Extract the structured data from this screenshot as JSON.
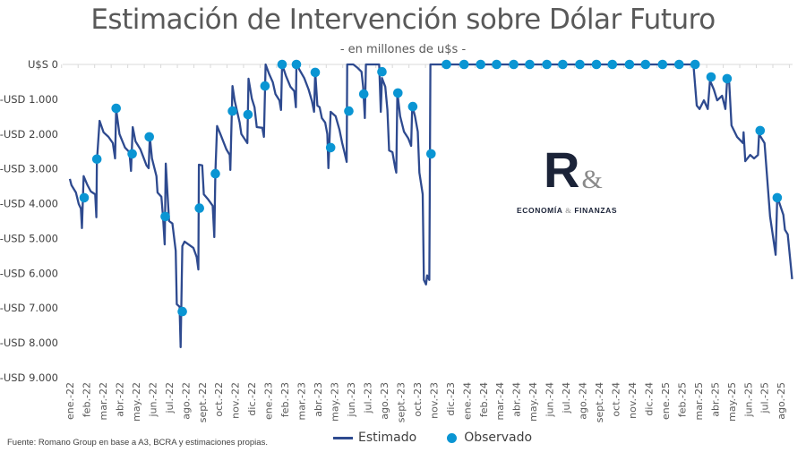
{
  "chart_data": {
    "type": "line",
    "title": "Estimación de Intervención sobre Dólar Futuro",
    "subtitle": "- en millones de u$s -",
    "source": "Fuente: Romano Group en base a A3, BCRA y estimaciones propias.",
    "ylim": [
      -9000,
      0
    ],
    "y_ticks": [
      0,
      -1000,
      -2000,
      -3000,
      -4000,
      -5000,
      -6000,
      -7000,
      -8000,
      -9000
    ],
    "y_tick_labels": [
      "U$S 0",
      "-USD 1.000",
      "-USD 2.000",
      "-USD 3.000",
      "-USD 4.000",
      "-USD 5.000",
      "-USD 6.000",
      "-USD 7.000",
      "-USD 8.000",
      "-USD 9.000"
    ],
    "x_tick_labels": [
      "ene.-22",
      "feb.-22",
      "mar.-22",
      "abr.-22",
      "may.-22",
      "jun.-22",
      "jul.-22",
      "ago.-22",
      "sept.-22",
      "oct.-22",
      "nov.-22",
      "dic.-22",
      "ene.-23",
      "feb.-23",
      "mar.-23",
      "abr.-23",
      "may.-23",
      "jun.-23",
      "jul.-23",
      "ago.-23",
      "sept.-23",
      "oct.-23",
      "nov.-23",
      "dic.-23",
      "ene.-24",
      "feb.-24",
      "mar.-24",
      "abr.-24",
      "may.-24",
      "jun.-24",
      "jul.-24",
      "ago.-24",
      "sept.-24",
      "oct.-24",
      "nov.-24",
      "dic.-24",
      "ene.-25",
      "feb.-25",
      "mar.-25",
      "abr.-25",
      "may.-25",
      "jun.-25",
      "jul.-25",
      "ago.-25"
    ],
    "grid": false,
    "legend_position": "bottom",
    "colors": {
      "estimado": "#2E4A8F",
      "observado": "#0A95D3",
      "text": "#595959"
    },
    "series": [
      {
        "name": "Estimado",
        "style": "line",
        "points": [
          [
            "2022-01-01",
            -3290
          ],
          [
            "2022-01-04",
            -3470
          ],
          [
            "2022-01-12",
            -3680
          ],
          [
            "2022-01-17",
            -4010
          ],
          [
            "2022-01-21",
            -4140
          ],
          [
            "2022-01-23",
            -4700
          ],
          [
            "2022-01-26",
            -3210
          ],
          [
            "2022-02-03",
            -3470
          ],
          [
            "2022-02-09",
            -3650
          ],
          [
            "2022-02-17",
            -3730
          ],
          [
            "2022-02-19",
            -4390
          ],
          [
            "2022-02-20",
            -2780
          ],
          [
            "2022-02-25",
            -1620
          ],
          [
            "2022-03-02",
            -1950
          ],
          [
            "2022-03-11",
            -2080
          ],
          [
            "2022-03-19",
            -2260
          ],
          [
            "2022-03-23",
            -2700
          ],
          [
            "2022-03-25",
            -1290
          ],
          [
            "2022-04-01",
            -2000
          ],
          [
            "2022-04-11",
            -2390
          ],
          [
            "2022-04-19",
            -2520
          ],
          [
            "2022-04-22",
            -3060
          ],
          [
            "2022-04-25",
            -1800
          ],
          [
            "2022-04-30",
            -2210
          ],
          [
            "2022-05-09",
            -2440
          ],
          [
            "2022-05-20",
            -2900
          ],
          [
            "2022-05-24",
            -2980
          ],
          [
            "2022-05-26",
            -2080
          ],
          [
            "2022-05-30",
            -2700
          ],
          [
            "2022-06-08",
            -3210
          ],
          [
            "2022-06-10",
            -3680
          ],
          [
            "2022-06-17",
            -3800
          ],
          [
            "2022-06-20",
            -4370
          ],
          [
            "2022-06-23",
            -5170
          ],
          [
            "2022-06-25",
            -2850
          ],
          [
            "2022-07-01",
            -4500
          ],
          [
            "2022-07-07",
            -4570
          ],
          [
            "2022-07-13",
            -5350
          ],
          [
            "2022-07-15",
            -6890
          ],
          [
            "2022-07-20",
            -6960
          ],
          [
            "2022-07-22",
            -8120
          ],
          [
            "2022-07-25",
            -5220
          ],
          [
            "2022-07-29",
            -5090
          ],
          [
            "2022-08-15",
            -5270
          ],
          [
            "2022-08-21",
            -5530
          ],
          [
            "2022-08-24",
            -5890
          ],
          [
            "2022-08-25",
            -2880
          ],
          [
            "2022-09-01",
            -2900
          ],
          [
            "2022-09-04",
            -3730
          ],
          [
            "2022-09-12",
            -3880
          ],
          [
            "2022-09-20",
            -4060
          ],
          [
            "2022-09-23",
            -4960
          ],
          [
            "2022-09-25",
            -3110
          ],
          [
            "2022-09-28",
            -1770
          ],
          [
            "2022-10-04",
            -2000
          ],
          [
            "2022-10-15",
            -2440
          ],
          [
            "2022-10-21",
            -2600
          ],
          [
            "2022-10-22",
            -3030
          ],
          [
            "2022-10-26",
            -620
          ],
          [
            "2022-10-30",
            -1050
          ],
          [
            "2022-11-09",
            -1670
          ],
          [
            "2022-11-12",
            -2000
          ],
          [
            "2022-11-23",
            -2260
          ],
          [
            "2022-11-25",
            -410
          ],
          [
            "2022-12-01",
            -980
          ],
          [
            "2022-12-06",
            -1230
          ],
          [
            "2022-12-10",
            -1800
          ],
          [
            "2022-12-20",
            -1820
          ],
          [
            "2022-12-23",
            -2080
          ],
          [
            "2022-12-26",
            0
          ],
          [
            "2023-01-02",
            -260
          ],
          [
            "2023-01-09",
            -510
          ],
          [
            "2023-01-14",
            -850
          ],
          [
            "2023-01-21",
            -1030
          ],
          [
            "2023-01-24",
            -1310
          ],
          [
            "2023-01-26",
            0
          ],
          [
            "2023-02-03",
            -330
          ],
          [
            "2023-02-11",
            -640
          ],
          [
            "2023-02-18",
            -770
          ],
          [
            "2023-02-21",
            -1230
          ],
          [
            "2023-02-22",
            0
          ],
          [
            "2023-03-06",
            -390
          ],
          [
            "2023-03-14",
            -720
          ],
          [
            "2023-03-20",
            -1050
          ],
          [
            "2023-03-24",
            -1360
          ],
          [
            "2023-03-26",
            -210
          ],
          [
            "2023-03-30",
            -1180
          ],
          [
            "2023-04-04",
            -1230
          ],
          [
            "2023-04-08",
            -1540
          ],
          [
            "2023-04-14",
            -1670
          ],
          [
            "2023-04-18",
            -2000
          ],
          [
            "2023-04-20",
            -2980
          ],
          [
            "2023-04-24",
            -1360
          ],
          [
            "2023-05-03",
            -1490
          ],
          [
            "2023-05-10",
            -1880
          ],
          [
            "2023-05-15",
            -2260
          ],
          [
            "2023-05-19",
            -2520
          ],
          [
            "2023-05-23",
            -2800
          ],
          [
            "2023-05-24",
            0
          ],
          [
            "2023-06-05",
            0
          ],
          [
            "2023-06-13",
            -100
          ],
          [
            "2023-06-20",
            -210
          ],
          [
            "2023-06-23",
            -640
          ],
          [
            "2023-06-26",
            -1540
          ],
          [
            "2023-06-28",
            0
          ],
          [
            "2023-07-22",
            0
          ],
          [
            "2023-07-25",
            -1360
          ],
          [
            "2023-07-27",
            -390
          ],
          [
            "2023-08-03",
            -640
          ],
          [
            "2023-08-07",
            -1310
          ],
          [
            "2023-08-10",
            -2470
          ],
          [
            "2023-08-16",
            -2520
          ],
          [
            "2023-08-21",
            -2960
          ],
          [
            "2023-08-23",
            -3110
          ],
          [
            "2023-08-25",
            -800
          ],
          [
            "2023-08-30",
            -1490
          ],
          [
            "2023-09-07",
            -1930
          ],
          [
            "2023-09-15",
            -2130
          ],
          [
            "2023-09-20",
            -2340
          ],
          [
            "2023-09-22",
            -1180
          ],
          [
            "2023-09-27",
            -1490
          ],
          [
            "2023-10-02",
            -1930
          ],
          [
            "2023-10-05",
            -3110
          ],
          [
            "2023-10-11",
            -3730
          ],
          [
            "2023-10-13",
            -6190
          ],
          [
            "2023-10-17",
            -6320
          ],
          [
            "2023-10-19",
            -6060
          ],
          [
            "2023-10-23",
            -6190
          ],
          [
            "2023-10-25",
            0
          ],
          [
            "2025-02-22",
            0
          ],
          [
            "2025-02-28",
            -1180
          ],
          [
            "2025-03-03",
            -1280
          ],
          [
            "2025-03-11",
            -1030
          ],
          [
            "2025-03-18",
            -1280
          ],
          [
            "2025-03-22",
            -460
          ],
          [
            "2025-03-29",
            -720
          ],
          [
            "2025-04-05",
            -1030
          ],
          [
            "2025-04-14",
            -900
          ],
          [
            "2025-04-20",
            -1280
          ],
          [
            "2025-04-23",
            -460
          ],
          [
            "2025-04-27",
            -540
          ],
          [
            "2025-05-01",
            -1750
          ],
          [
            "2025-05-11",
            -2080
          ],
          [
            "2025-05-22",
            -2260
          ],
          [
            "2025-05-23",
            -1950
          ],
          [
            "2025-05-26",
            -2780
          ],
          [
            "2025-06-05",
            -2600
          ],
          [
            "2025-06-12",
            -2700
          ],
          [
            "2025-06-19",
            -2600
          ],
          [
            "2025-06-21",
            -2000
          ],
          [
            "2025-07-01",
            -2260
          ],
          [
            "2025-07-11",
            -4370
          ],
          [
            "2025-07-21",
            -5470
          ],
          [
            "2025-07-24",
            -3800
          ],
          [
            "2025-08-05",
            -4320
          ],
          [
            "2025-08-08",
            -4750
          ],
          [
            "2025-08-13",
            -4880
          ],
          [
            "2025-08-21",
            -6170
          ]
        ]
      },
      {
        "name": "Observado",
        "style": "markers",
        "points": [
          [
            "2022-01-27",
            -3830
          ],
          [
            "2022-02-20",
            -2720
          ],
          [
            "2022-03-25",
            -1260
          ],
          [
            "2022-04-24",
            -2570
          ],
          [
            "2022-05-25",
            -2080
          ],
          [
            "2022-06-24",
            -4370
          ],
          [
            "2022-07-25",
            -7100
          ],
          [
            "2022-08-26",
            -4130
          ],
          [
            "2022-09-25",
            -3140
          ],
          [
            "2022-10-26",
            -1340
          ],
          [
            "2022-11-24",
            -1440
          ],
          [
            "2022-12-25",
            -620
          ],
          [
            "2023-01-26",
            0
          ],
          [
            "2023-02-22",
            0
          ],
          [
            "2023-03-26",
            -230
          ],
          [
            "2023-04-24",
            -2390
          ],
          [
            "2023-05-27",
            -1340
          ],
          [
            "2023-06-24",
            -850
          ],
          [
            "2023-07-27",
            -210
          ],
          [
            "2023-08-26",
            -820
          ],
          [
            "2023-09-23",
            -1210
          ],
          [
            "2023-10-26",
            -2570
          ],
          [
            "2023-11-24",
            0
          ],
          [
            "2023-12-26",
            0
          ],
          [
            "2024-01-26",
            0
          ],
          [
            "2024-02-25",
            0
          ],
          [
            "2024-03-26",
            0
          ],
          [
            "2024-04-25",
            0
          ],
          [
            "2024-05-26",
            0
          ],
          [
            "2024-06-25",
            0
          ],
          [
            "2024-07-26",
            0
          ],
          [
            "2024-08-26",
            0
          ],
          [
            "2024-09-25",
            0
          ],
          [
            "2024-10-26",
            0
          ],
          [
            "2024-11-25",
            0
          ],
          [
            "2024-12-26",
            0
          ],
          [
            "2025-01-26",
            0
          ],
          [
            "2025-02-25",
            0
          ],
          [
            "2025-03-24",
            -360
          ],
          [
            "2025-04-23",
            -410
          ],
          [
            "2025-06-23",
            -1900
          ],
          [
            "2025-07-24",
            -3830
          ]
        ]
      }
    ]
  },
  "logo": {
    "mark": "R&",
    "text": "ECONOMÍA & FINANZAS"
  }
}
